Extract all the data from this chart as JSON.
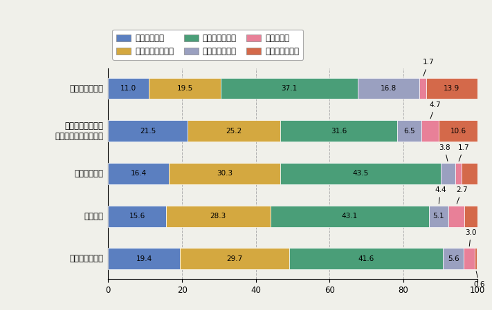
{
  "categories": [
    "交通違反取締り",
    "交通事故の処理・\nひき逃げ事件等の捕査",
    "交通安全教育",
    "交通整理",
    "免許窓口・講習"
  ],
  "series_labels": [
    "好感が持てる",
    "やや好感が持てる",
    "何とも思わない",
    "やや印象が悪い",
    "印象が悪い",
    "見たことがない"
  ],
  "colors": [
    "#5b7fc0",
    "#d4a840",
    "#4a9e78",
    "#9aa0c0",
    "#e88098",
    "#d4694a"
  ],
  "data": [
    [
      11.0,
      19.5,
      37.1,
      16.8,
      1.7,
      13.9
    ],
    [
      21.5,
      25.2,
      31.6,
      6.5,
      4.7,
      10.6
    ],
    [
      16.4,
      30.3,
      43.5,
      3.8,
      1.7,
      4.3
    ],
    [
      15.6,
      28.3,
      43.1,
      5.1,
      4.4,
      3.5
    ],
    [
      19.4,
      29.7,
      41.6,
      5.6,
      3.0,
      0.6
    ]
  ],
  "background_color": "#f0f0ea",
  "grid_color": "#b0b0b0",
  "bar_height": 0.5,
  "figsize": [
    7.11,
    4.49
  ],
  "dpi": 100
}
